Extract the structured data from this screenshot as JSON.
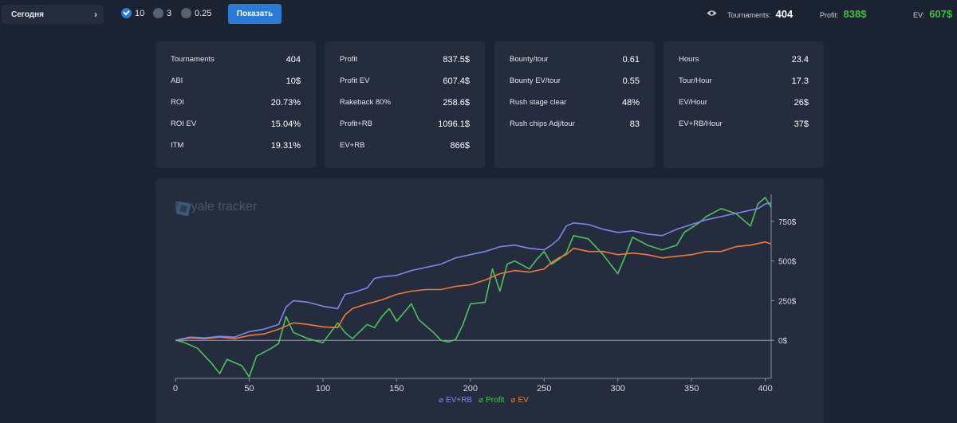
{
  "toolbar": {
    "period_label": "Сегодня",
    "stakes": [
      {
        "label": "10",
        "checked": true
      },
      {
        "label": "3",
        "checked": false
      },
      {
        "label": "0.25",
        "checked": false
      }
    ],
    "show_label": "Показать"
  },
  "header_stats": {
    "tournaments_label": "Tournaments:",
    "tournaments_value": "404",
    "profit_label": "Profit:",
    "profit_value": "838$",
    "ev_label": "EV:",
    "ev_value": "607$"
  },
  "cards": [
    {
      "rows": [
        {
          "label": "Tournaments",
          "value": "404"
        },
        {
          "label": "ABI",
          "value": "10$"
        },
        {
          "label": "ROI",
          "value": "20.73%"
        },
        {
          "label": "ROI EV",
          "value": "15.04%"
        },
        {
          "label": "ITM",
          "value": "19.31%"
        }
      ]
    },
    {
      "rows": [
        {
          "label": "Profit",
          "value": "837.5$"
        },
        {
          "label": "Profit EV",
          "value": "607.4$"
        },
        {
          "label": "Rakeback 80%",
          "value": "258.6$"
        },
        {
          "label": "Profit+RB",
          "value": "1096.1$"
        },
        {
          "label": "EV+RB",
          "value": "866$"
        }
      ]
    },
    {
      "rows": [
        {
          "label": "Bounty/tour",
          "value": "0.61"
        },
        {
          "label": "Bounty EV/tour",
          "value": "0.55"
        },
        {
          "label": "Rush stage clear",
          "value": "48%"
        },
        {
          "label": "Rush chips Adj/tour",
          "value": "83"
        }
      ]
    },
    {
      "rows": [
        {
          "label": "Hours",
          "value": "23.4"
        },
        {
          "label": "Tour/Hour",
          "value": "17.3"
        },
        {
          "label": "EV/Hour",
          "value": "26$"
        },
        {
          "label": "EV+RB/Hour",
          "value": "37$"
        }
      ]
    }
  ],
  "watermark": "Royale tracker",
  "colors": {
    "ev_rb": "#7d87ee",
    "profit": "#4bc55a",
    "ev": "#ef7a3a",
    "accent": "#2b7bd6"
  },
  "chart_data": {
    "type": "line",
    "title": "",
    "xlabel": "",
    "ylabel": "",
    "x_ticks": [
      "0",
      "50",
      "100",
      "150",
      "200",
      "250",
      "300",
      "350",
      "400"
    ],
    "y_ticks": [
      "0$",
      "250$",
      "500$",
      "750$"
    ],
    "xlim": [
      0,
      404
    ],
    "ylim": [
      -240,
      920
    ],
    "legend_position": "bottom-center",
    "series": [
      {
        "name": "EV+RB",
        "color": "#7d87ee",
        "points": [
          [
            0,
            0
          ],
          [
            10,
            20
          ],
          [
            20,
            15
          ],
          [
            30,
            25
          ],
          [
            40,
            20
          ],
          [
            50,
            55
          ],
          [
            60,
            70
          ],
          [
            70,
            100
          ],
          [
            75,
            210
          ],
          [
            80,
            250
          ],
          [
            90,
            240
          ],
          [
            100,
            215
          ],
          [
            110,
            200
          ],
          [
            115,
            290
          ],
          [
            120,
            300
          ],
          [
            130,
            330
          ],
          [
            135,
            390
          ],
          [
            140,
            400
          ],
          [
            150,
            410
          ],
          [
            160,
            440
          ],
          [
            170,
            460
          ],
          [
            180,
            480
          ],
          [
            190,
            520
          ],
          [
            200,
            540
          ],
          [
            210,
            560
          ],
          [
            220,
            590
          ],
          [
            230,
            600
          ],
          [
            240,
            580
          ],
          [
            250,
            570
          ],
          [
            255,
            600
          ],
          [
            260,
            640
          ],
          [
            265,
            720
          ],
          [
            270,
            740
          ],
          [
            280,
            730
          ],
          [
            290,
            700
          ],
          [
            300,
            680
          ],
          [
            310,
            690
          ],
          [
            320,
            670
          ],
          [
            330,
            660
          ],
          [
            340,
            700
          ],
          [
            350,
            730
          ],
          [
            360,
            760
          ],
          [
            370,
            780
          ],
          [
            380,
            800
          ],
          [
            390,
            820
          ],
          [
            395,
            830
          ],
          [
            400,
            860
          ],
          [
            404,
            866
          ]
        ]
      },
      {
        "name": "Profit",
        "color": "#4bc55a",
        "points": [
          [
            0,
            0
          ],
          [
            5,
            -10
          ],
          [
            15,
            -50
          ],
          [
            25,
            -150
          ],
          [
            30,
            -210
          ],
          [
            35,
            -120
          ],
          [
            45,
            -160
          ],
          [
            50,
            -230
          ],
          [
            55,
            -100
          ],
          [
            65,
            -50
          ],
          [
            70,
            -20
          ],
          [
            75,
            150
          ],
          [
            80,
            50
          ],
          [
            90,
            10
          ],
          [
            100,
            -15
          ],
          [
            110,
            110
          ],
          [
            115,
            50
          ],
          [
            120,
            10
          ],
          [
            130,
            100
          ],
          [
            135,
            80
          ],
          [
            140,
            150
          ],
          [
            145,
            200
          ],
          [
            150,
            120
          ],
          [
            160,
            230
          ],
          [
            165,
            130
          ],
          [
            170,
            90
          ],
          [
            175,
            50
          ],
          [
            180,
            0
          ],
          [
            185,
            -10
          ],
          [
            190,
            5
          ],
          [
            195,
            100
          ],
          [
            200,
            230
          ],
          [
            210,
            240
          ],
          [
            215,
            450
          ],
          [
            220,
            310
          ],
          [
            225,
            480
          ],
          [
            230,
            500
          ],
          [
            240,
            450
          ],
          [
            245,
            510
          ],
          [
            250,
            560
          ],
          [
            255,
            480
          ],
          [
            260,
            510
          ],
          [
            265,
            550
          ],
          [
            270,
            660
          ],
          [
            280,
            640
          ],
          [
            290,
            540
          ],
          [
            300,
            420
          ],
          [
            305,
            530
          ],
          [
            310,
            650
          ],
          [
            320,
            600
          ],
          [
            330,
            570
          ],
          [
            340,
            600
          ],
          [
            345,
            680
          ],
          [
            355,
            740
          ],
          [
            360,
            780
          ],
          [
            370,
            830
          ],
          [
            380,
            800
          ],
          [
            390,
            720
          ],
          [
            395,
            860
          ],
          [
            400,
            900
          ],
          [
            404,
            838
          ]
        ]
      },
      {
        "name": "EV",
        "color": "#ef7a3a",
        "points": [
          [
            0,
            0
          ],
          [
            10,
            15
          ],
          [
            20,
            10
          ],
          [
            30,
            20
          ],
          [
            40,
            10
          ],
          [
            50,
            30
          ],
          [
            60,
            40
          ],
          [
            70,
            70
          ],
          [
            80,
            110
          ],
          [
            90,
            100
          ],
          [
            100,
            85
          ],
          [
            110,
            80
          ],
          [
            115,
            160
          ],
          [
            120,
            200
          ],
          [
            130,
            230
          ],
          [
            140,
            255
          ],
          [
            150,
            290
          ],
          [
            160,
            310
          ],
          [
            170,
            320
          ],
          [
            180,
            320
          ],
          [
            190,
            340
          ],
          [
            200,
            350
          ],
          [
            210,
            380
          ],
          [
            220,
            420
          ],
          [
            230,
            440
          ],
          [
            240,
            430
          ],
          [
            250,
            450
          ],
          [
            255,
            490
          ],
          [
            260,
            520
          ],
          [
            265,
            540
          ],
          [
            270,
            580
          ],
          [
            280,
            560
          ],
          [
            290,
            560
          ],
          [
            300,
            540
          ],
          [
            310,
            550
          ],
          [
            320,
            540
          ],
          [
            330,
            520
          ],
          [
            340,
            530
          ],
          [
            350,
            540
          ],
          [
            360,
            560
          ],
          [
            370,
            560
          ],
          [
            380,
            590
          ],
          [
            390,
            600
          ],
          [
            400,
            620
          ],
          [
            404,
            607
          ]
        ]
      }
    ]
  }
}
